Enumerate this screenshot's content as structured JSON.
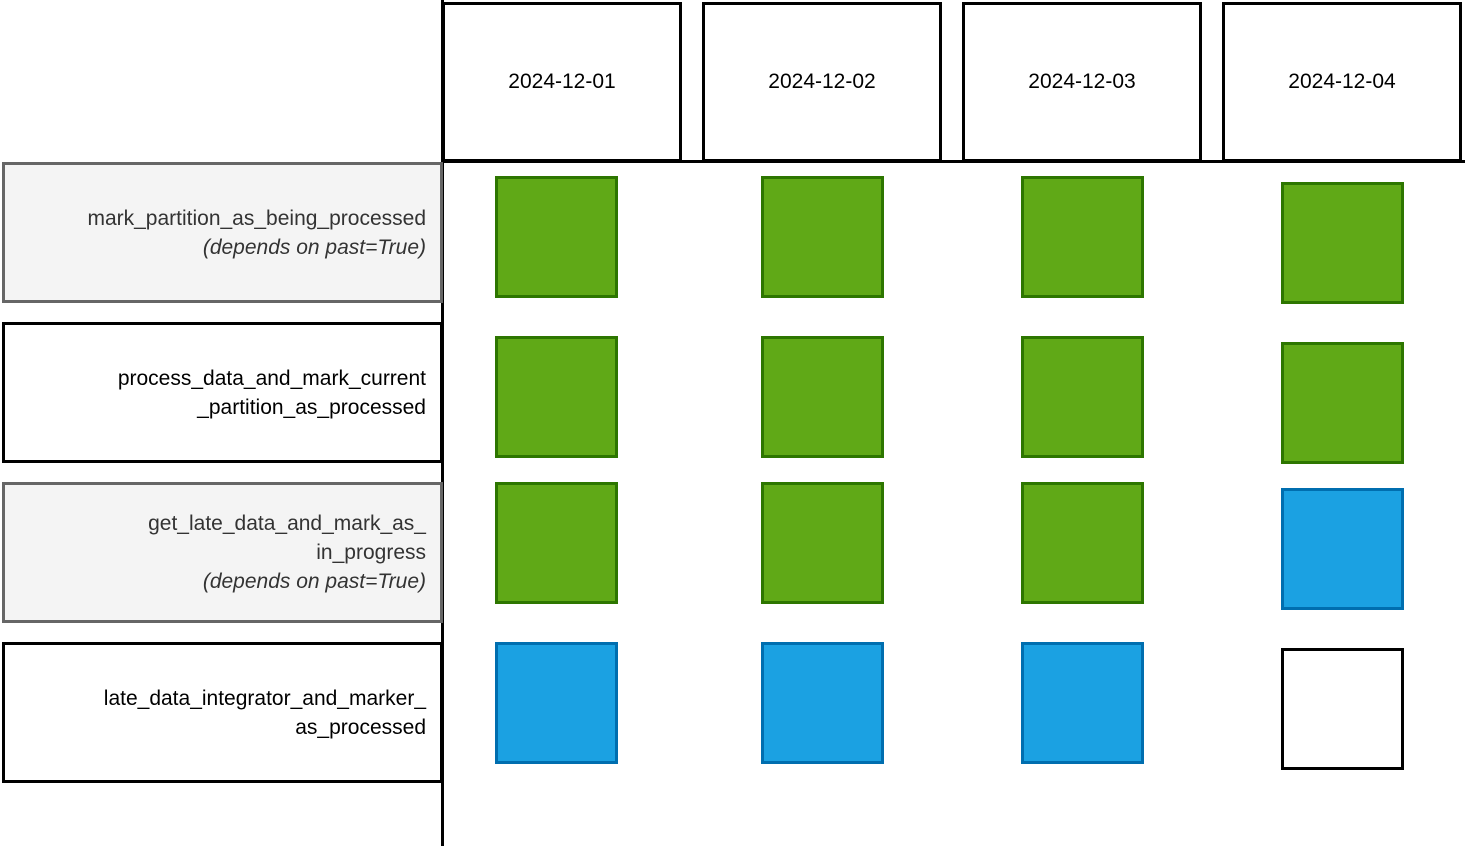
{
  "dates": [
    "2024-12-01",
    "2024-12-02",
    "2024-12-03",
    "2024-12-04"
  ],
  "tasks": [
    {
      "name": "mark_partition_as_being_processed",
      "note": "(depends on past=True)",
      "style": "gray"
    },
    {
      "name": "process_data_and_mark_current\n_partition_as_processed",
      "note": "",
      "style": "plain"
    },
    {
      "name": "get_late_data_and_mark_as_\nin_progress",
      "note": "(depends on past=True)",
      "style": "gray"
    },
    {
      "name": "late_data_integrator_and_marker_\nas_processed",
      "note": "",
      "style": "plain"
    }
  ],
  "grid": [
    [
      "success",
      "success",
      "success",
      "success"
    ],
    [
      "success",
      "success",
      "success",
      "success"
    ],
    [
      "success",
      "success",
      "success",
      "running"
    ],
    [
      "running",
      "running",
      "running",
      "none"
    ]
  ],
  "state_colors": {
    "success": "#60a917",
    "running": "#1ba1e2",
    "none": "#ffffff"
  }
}
